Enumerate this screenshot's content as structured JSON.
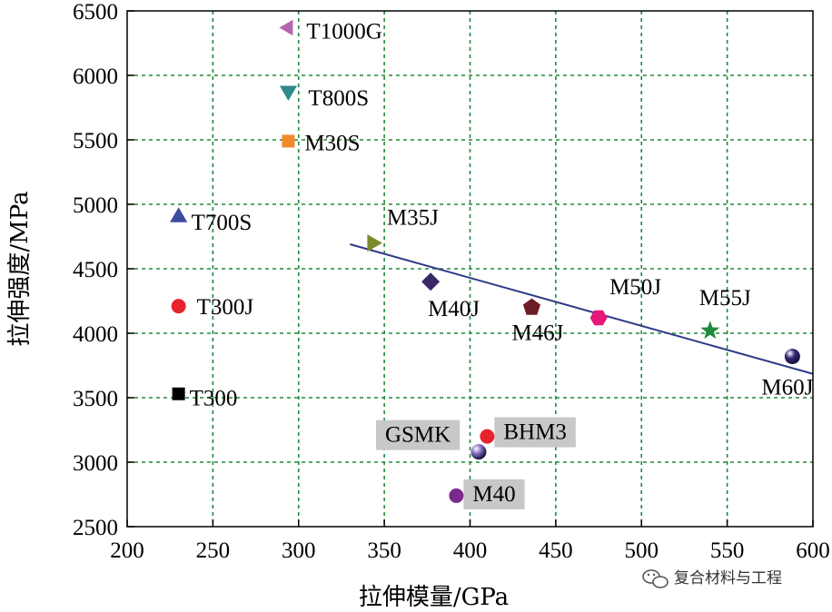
{
  "chart_data": {
    "type": "scatter",
    "xlabel": "拉伸模量/GPa",
    "ylabel": "拉伸强度/MPa",
    "xlim": [
      200,
      600
    ],
    "ylim": [
      2500,
      6500
    ],
    "xticks": [
      200,
      250,
      300,
      350,
      400,
      450,
      500,
      550,
      600
    ],
    "yticks": [
      2500,
      3000,
      3500,
      4000,
      4500,
      5000,
      5500,
      6000,
      6500
    ],
    "grid": true,
    "points": [
      {
        "label": "T1000G",
        "x": 294,
        "y": 6370,
        "marker": "triangle-left",
        "color": "#b565b0",
        "boxed": false
      },
      {
        "label": "T800S",
        "x": 294,
        "y": 5880,
        "marker": "triangle-down",
        "color": "#2f8a8a",
        "boxed": false
      },
      {
        "label": "M30S",
        "x": 294,
        "y": 5490,
        "marker": "square",
        "color": "#ef8a2c",
        "boxed": false
      },
      {
        "label": "T700S",
        "x": 230,
        "y": 4900,
        "marker": "triangle-up",
        "color": "#3c4aa0",
        "boxed": false
      },
      {
        "label": "T300J",
        "x": 230,
        "y": 4210,
        "marker": "circle",
        "color": "#e8232d",
        "boxed": false
      },
      {
        "label": "T300",
        "x": 230,
        "y": 3530,
        "marker": "square",
        "color": "#000000",
        "boxed": false
      },
      {
        "label": "M35J",
        "x": 343,
        "y": 4700,
        "marker": "triangle-right",
        "color": "#7a8c2a",
        "boxed": false
      },
      {
        "label": "M40J",
        "x": 377,
        "y": 4400,
        "marker": "diamond",
        "color": "#3a2868",
        "boxed": false
      },
      {
        "label": "M46J",
        "x": 436,
        "y": 4200,
        "marker": "pentagon",
        "color": "#6e1c28",
        "boxed": false
      },
      {
        "label": "M50J",
        "x": 475,
        "y": 4120,
        "marker": "hexagon",
        "color": "#e5177a",
        "boxed": false
      },
      {
        "label": "M55J",
        "x": 540,
        "y": 4020,
        "marker": "star",
        "color": "#1c8a3a",
        "boxed": false
      },
      {
        "label": "M60J",
        "x": 588,
        "y": 3820,
        "marker": "sphere",
        "color": "#3a2a7a",
        "boxed": false
      },
      {
        "label": "BHM3",
        "x": 410,
        "y": 3200,
        "marker": "circle",
        "color": "#e8232d",
        "boxed": true
      },
      {
        "label": "GSMK",
        "x": 405,
        "y": 3080,
        "marker": "sphere",
        "color": "#8a70c8",
        "boxed": true
      },
      {
        "label": "M40",
        "x": 392,
        "y": 2740,
        "marker": "circle",
        "color": "#7a2a8a",
        "boxed": true
      }
    ],
    "trendline": {
      "x": [
        330,
        600
      ],
      "y": [
        4690,
        3685
      ],
      "color": "#2e3a88"
    }
  },
  "watermark": {
    "text": "复合材料与工程",
    "icon": "wechat-icon"
  }
}
